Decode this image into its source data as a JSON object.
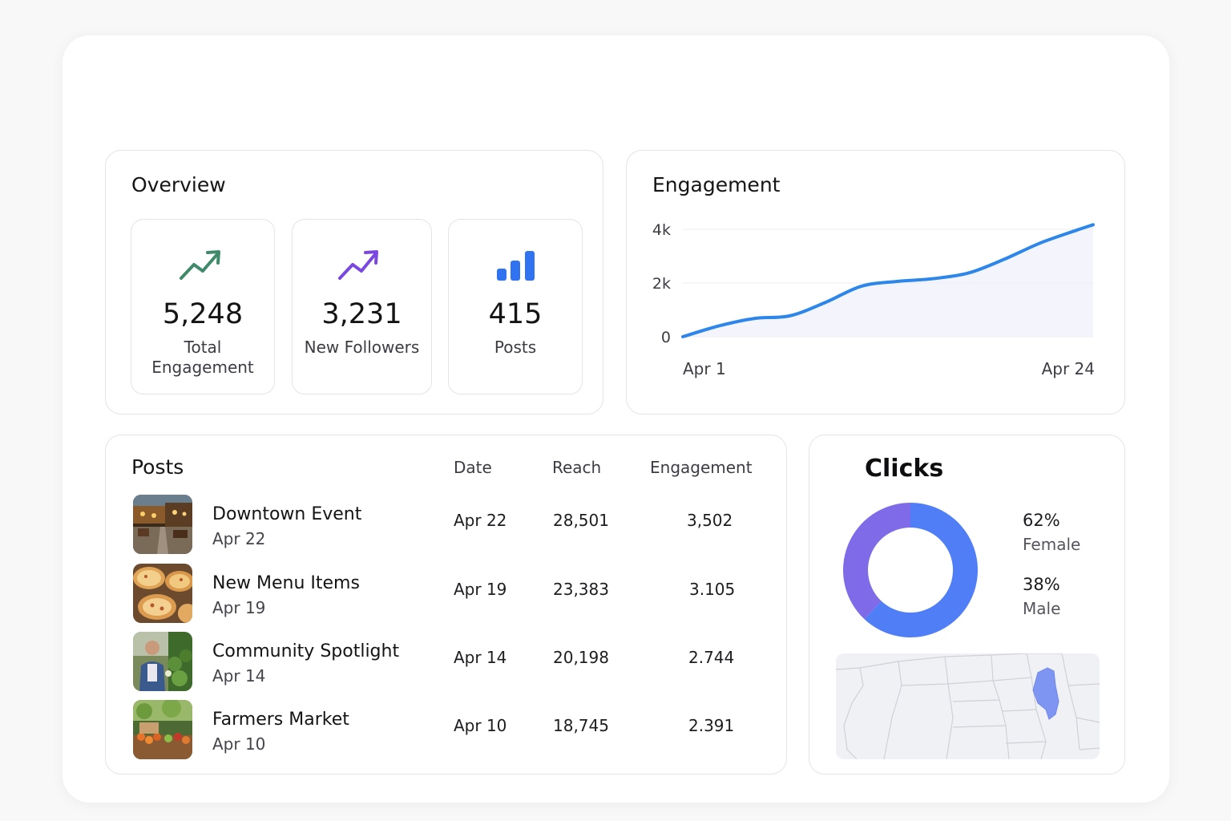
{
  "overview": {
    "title": "Overview",
    "stats": [
      {
        "value": "5,248",
        "label": "Total Engagement",
        "icon": "trend-up-green-icon",
        "color": "#3f8a6a"
      },
      {
        "value": "3,231",
        "label": "New Followers",
        "icon": "trend-up-purple-icon",
        "color": "#7a47e0"
      },
      {
        "value": "415",
        "label": "Posts",
        "icon": "bar-chart-icon",
        "color": "#2f73f0"
      }
    ]
  },
  "engagement": {
    "title": "Engagement",
    "chart_data": {
      "type": "area",
      "title": "Engagement",
      "x_labels": [
        "Apr 1",
        "Apr 24"
      ],
      "y_ticks": [
        "4k",
        "2k",
        "0"
      ],
      "ylim": [
        0,
        4000
      ],
      "series": [
        {
          "name": "Engagement",
          "color": "#2d86ea",
          "x": [
            1,
            3,
            5,
            7,
            9,
            11,
            13,
            15,
            17,
            19,
            21,
            23,
            24
          ],
          "values": [
            0,
            400,
            680,
            780,
            1280,
            1880,
            2060,
            2160,
            2370,
            2880,
            3480,
            3950,
            4170
          ]
        }
      ]
    }
  },
  "posts": {
    "title": "Posts",
    "columns": {
      "date": "Date",
      "reach": "Reach",
      "engagement": "Engagement"
    },
    "rows": [
      {
        "title": "Downtown Event",
        "sub": "Apr 22",
        "date": "Apr 22",
        "reach": "28,501",
        "engagement": "3,502"
      },
      {
        "title": "New Menu Items",
        "sub": "Apr 19",
        "date": "Apr 19",
        "reach": "23,383",
        "engagement": "3.105"
      },
      {
        "title": "Community Spotlight",
        "sub": "Apr 14",
        "date": "Apr 14",
        "reach": "20,198",
        "engagement": "2.744"
      },
      {
        "title": "Farmers Market",
        "sub": "Apr 10",
        "date": "Apr 10",
        "reach": "18,745",
        "engagement": "2.391"
      }
    ]
  },
  "clicks": {
    "title": "Clicks",
    "chart_data": {
      "type": "pie",
      "slices": [
        {
          "label": "Female",
          "pct": "62%",
          "value": 62,
          "color": "#4f7ef7"
        },
        {
          "label": "Male",
          "pct": "38%",
          "value": 38,
          "color": "#7f6ae8"
        }
      ]
    },
    "map": {
      "highlight": "Illinois",
      "highlight_color": "#7f95f2"
    }
  }
}
